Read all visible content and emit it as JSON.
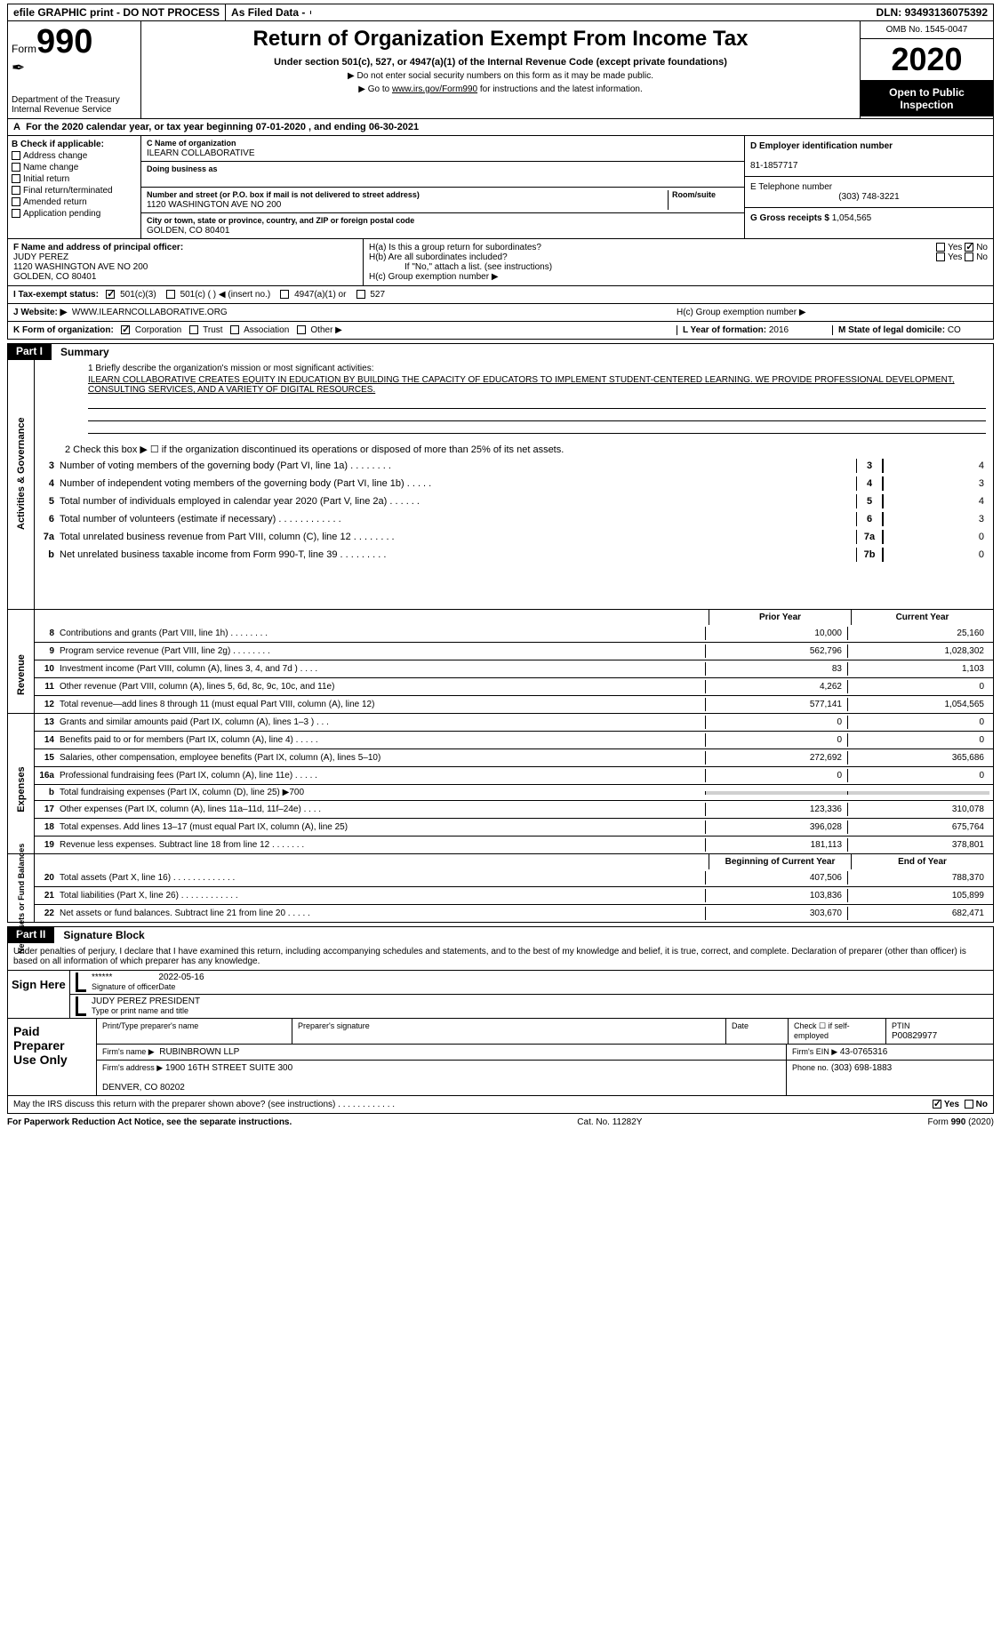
{
  "topbar": {
    "efile": "efile GRAPHIC print - DO NOT PROCESS",
    "asfiled": "As Filed Data -",
    "dln_label": "DLN:",
    "dln": "93493136075392"
  },
  "header": {
    "form_label": "Form",
    "form_no": "990",
    "dept": "Department of the Treasury\nInternal Revenue Service",
    "title": "Return of Organization Exempt From Income Tax",
    "sub1": "Under section 501(c), 527, or 4947(a)(1) of the Internal Revenue Code (except private foundations)",
    "sub2": "▶ Do not enter social security numbers on this form as it may be made public.",
    "sub3_a": "▶ Go to ",
    "sub3_link": "www.irs.gov/Form990",
    "sub3_b": " for instructions and the latest information.",
    "omb": "OMB No. 1545-0047",
    "year": "2020",
    "open": "Open to Public Inspection"
  },
  "rowA": {
    "label": "A",
    "text": "For the 2020 calendar year, or tax year beginning 07-01-2020   , and ending 06-30-2021"
  },
  "colB": {
    "label": "B Check if applicable:",
    "items": [
      "Address change",
      "Name change",
      "Initial return",
      "Final return/terminated",
      "Amended return",
      "Application pending"
    ]
  },
  "colC": {
    "name_label": "C Name of organization",
    "name": "ILEARN COLLABORATIVE",
    "dba_label": "Doing business as",
    "dba": "",
    "addr_label": "Number and street (or P.O. box if mail is not delivered to street address)",
    "room_label": "Room/suite",
    "addr": "1120 WASHINGTON AVE NO 200",
    "city_label": "City or town, state or province, country, and ZIP or foreign postal code",
    "city": "GOLDEN, CO  80401"
  },
  "colD": {
    "ein_label": "D Employer identification number",
    "ein": "81-1857717",
    "phone_label": "E Telephone number",
    "phone": "(303) 748-3221",
    "gross_label": "G Gross receipts $",
    "gross": "1,054,565"
  },
  "rowF": {
    "label": "F  Name and address of principal officer:",
    "name": "JUDY PEREZ",
    "addr": "1120 WASHINGTON AVE NO 200\nGOLDEN, CO  80401"
  },
  "rowH": {
    "ha": "H(a)  Is this a group return for subordinates?",
    "hb": "H(b)  Are all subordinates included?",
    "hb2": "If \"No,\" attach a list. (see instructions)",
    "hc": "H(c)  Group exemption number ▶",
    "yes": "Yes",
    "no": "No"
  },
  "rowI": {
    "label": "I  Tax-exempt status:",
    "opts": [
      "501(c)(3)",
      "501(c) (   ) ◀ (insert no.)",
      "4947(a)(1) or",
      "527"
    ]
  },
  "rowJ": {
    "label": "J  Website: ▶",
    "val": "WWW.ILEARNCOLLABORATIVE.ORG"
  },
  "rowK": {
    "label": "K Form of organization:",
    "opts": [
      "Corporation",
      "Trust",
      "Association",
      "Other ▶"
    ],
    "L_label": "L Year of formation:",
    "L_val": "2016",
    "M_label": "M State of legal domicile:",
    "M_val": "CO"
  },
  "part1": {
    "num": "Part I",
    "title": "Summary",
    "q1": "1 Briefly describe the organization's mission or most significant activities:",
    "mission": "ILEARN COLLABORATIVE CREATES EQUITY IN EDUCATION BY BUILDING THE CAPACITY OF EDUCATORS TO IMPLEMENT STUDENT-CENTERED LEARNING. WE PROVIDE PROFESSIONAL DEVELOPMENT, CONSULTING SERVICES, AND A VARIETY OF DIGITAL RESOURCES.",
    "q2": "2  Check this box ▶ ☐ if the organization discontinued its operations or disposed of more than 25% of its net assets.",
    "vtab_ag": "Activities & Governance",
    "vtab_rev": "Revenue",
    "vtab_exp": "Expenses",
    "vtab_na": "Net Assets or Fund Balances",
    "lines_single": [
      {
        "n": "3",
        "d": "Number of voting members of the governing body (Part VI, line 1a)   .    .    .    .    .    .    .    .",
        "b": "3",
        "v": "4"
      },
      {
        "n": "4",
        "d": "Number of independent voting members of the governing body (Part VI, line 1b)   .    .    .    .    .",
        "b": "4",
        "v": "3"
      },
      {
        "n": "5",
        "d": "Total number of individuals employed in calendar year 2020 (Part V, line 2a)   .    .    .    .    .    .",
        "b": "5",
        "v": "4"
      },
      {
        "n": "6",
        "d": "Total number of volunteers (estimate if necessary)   .    .    .    .    .    .    .    .    .    .    .    .",
        "b": "6",
        "v": "3"
      },
      {
        "n": "7a",
        "d": "Total unrelated business revenue from Part VIII, column (C), line 12   .    .    .    .    .    .    .    .",
        "b": "7a",
        "v": "0"
      },
      {
        "n": "b",
        "d": "Net unrelated business taxable income from Form 990-T, line 39   .    .    .    .    .    .    .    .    .",
        "b": "7b",
        "v": "0"
      }
    ],
    "col_hdr1": "Prior Year",
    "col_hdr2": "Current Year",
    "lines_rev": [
      {
        "n": "8",
        "d": "Contributions and grants (Part VIII, line 1h)   .    .    .    .    .    .    .    .",
        "c1": "10,000",
        "c2": "25,160"
      },
      {
        "n": "9",
        "d": "Program service revenue (Part VIII, line 2g)   .    .    .    .    .    .    .    .",
        "c1": "562,796",
        "c2": "1,028,302"
      },
      {
        "n": "10",
        "d": "Investment income (Part VIII, column (A), lines 3, 4, and 7d )   .    .    .    .",
        "c1": "83",
        "c2": "1,103"
      },
      {
        "n": "11",
        "d": "Other revenue (Part VIII, column (A), lines 5, 6d, 8c, 9c, 10c, and 11e)",
        "c1": "4,262",
        "c2": "0"
      },
      {
        "n": "12",
        "d": "Total revenue—add lines 8 through 11 (must equal Part VIII, column (A), line 12)",
        "c1": "577,141",
        "c2": "1,054,565"
      }
    ],
    "lines_exp": [
      {
        "n": "13",
        "d": "Grants and similar amounts paid (Part IX, column (A), lines 1–3 )   .    .    .",
        "c1": "0",
        "c2": "0"
      },
      {
        "n": "14",
        "d": "Benefits paid to or for members (Part IX, column (A), line 4)   .    .    .    .    .",
        "c1": "0",
        "c2": "0"
      },
      {
        "n": "15",
        "d": "Salaries, other compensation, employee benefits (Part IX, column (A), lines 5–10)",
        "c1": "272,692",
        "c2": "365,686"
      },
      {
        "n": "16a",
        "d": "Professional fundraising fees (Part IX, column (A), line 11e)   .    .    .    .    .",
        "c1": "0",
        "c2": "0"
      },
      {
        "n": "b",
        "d": "Total fundraising expenses (Part IX, column (D), line 25) ▶700",
        "c1": "",
        "c2": "",
        "grey": true
      },
      {
        "n": "17",
        "d": "Other expenses (Part IX, column (A), lines 11a–11d, 11f–24e)   .    .    .    .",
        "c1": "123,336",
        "c2": "310,078"
      },
      {
        "n": "18",
        "d": "Total expenses. Add lines 13–17 (must equal Part IX, column (A), line 25)",
        "c1": "396,028",
        "c2": "675,764"
      },
      {
        "n": "19",
        "d": "Revenue less expenses. Subtract line 18 from line 12   .    .    .    .    .    .    .",
        "c1": "181,113",
        "c2": "378,801"
      }
    ],
    "col_hdr3": "Beginning of Current Year",
    "col_hdr4": "End of Year",
    "lines_na": [
      {
        "n": "20",
        "d": "Total assets (Part X, line 16)   .    .    .    .    .    .    .    .    .    .    .    .    .",
        "c1": "407,506",
        "c2": "788,370"
      },
      {
        "n": "21",
        "d": "Total liabilities (Part X, line 26)   .    .    .    .    .    .    .    .    .    .    .    .",
        "c1": "103,836",
        "c2": "105,899"
      },
      {
        "n": "22",
        "d": "Net assets or fund balances. Subtract line 21 from line 20   .    .    .    .    .",
        "c1": "303,670",
        "c2": "682,471"
      }
    ]
  },
  "part2": {
    "num": "Part II",
    "title": "Signature Block",
    "decl": "Under penalties of perjury, I declare that I have examined this return, including accompanying schedules and statements, and to the best of my knowledge and belief, it is true, correct, and complete. Declaration of preparer (other than officer) is based on all information of which preparer has any knowledge.",
    "sign_here": "Sign Here",
    "sig_stars": "******",
    "sig_label": "Signature of officer",
    "date_label": "Date",
    "date": "2022-05-16",
    "name": "JUDY PEREZ  PRESIDENT",
    "name_label": "Type or print name and title",
    "paid": "Paid Preparer Use Only",
    "p_name_label": "Print/Type preparer's name",
    "p_sig_label": "Preparer's signature",
    "p_date_label": "Date",
    "p_check": "Check ☐ if self-employed",
    "ptin_label": "PTIN",
    "ptin": "P00829977",
    "firm_name_label": "Firm's name    ▶",
    "firm_name": "RUBINBROWN LLP",
    "firm_ein_label": "Firm's EIN ▶",
    "firm_ein": "43-0765316",
    "firm_addr_label": "Firm's address ▶",
    "firm_addr": "1900 16TH STREET SUITE 300\n\nDENVER, CO  80202",
    "firm_phone_label": "Phone no.",
    "firm_phone": "(303) 698-1883",
    "may_irs": "May the IRS discuss this return with the preparer shown above? (see instructions)   .    .    .    .    .    .    .    .    .    .    .    .",
    "yes": "Yes",
    "no": "No"
  },
  "footer": {
    "left": "For Paperwork Reduction Act Notice, see the separate instructions.",
    "mid": "Cat. No. 11282Y",
    "right": "Form 990 (2020)"
  }
}
